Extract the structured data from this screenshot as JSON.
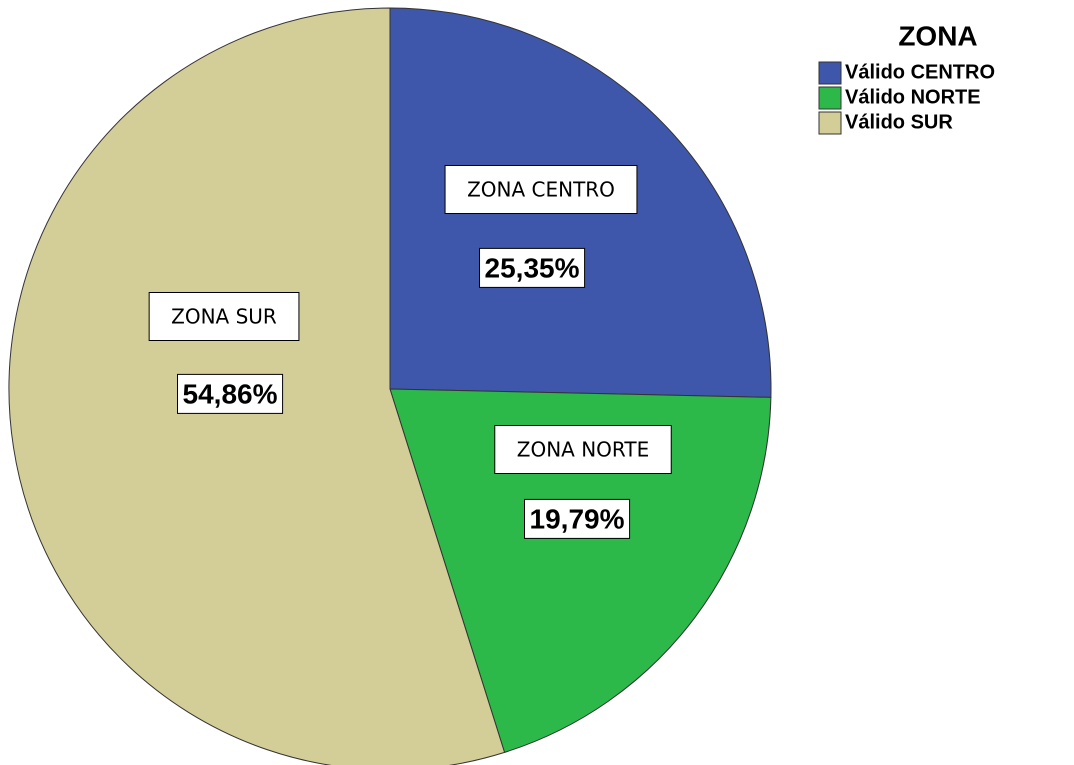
{
  "chart_data": {
    "type": "pie",
    "legend_title": "ZONA",
    "series": [
      {
        "name": "Válido CENTRO",
        "color": "#3f57ab"
      },
      {
        "name": "Válido NORTE",
        "color": "#2db84a"
      },
      {
        "name": "Válido SUR",
        "color": "#d3ce97"
      }
    ],
    "values": [
      25.35,
      19.79,
      54.86
    ],
    "value_labels": [
      "25,35%",
      "19,79%",
      "54,86%"
    ],
    "annotations": [
      "ZONA CENTRO",
      "ZONA NORTE",
      "ZONA SUR"
    ],
    "legend": "top-right"
  }
}
